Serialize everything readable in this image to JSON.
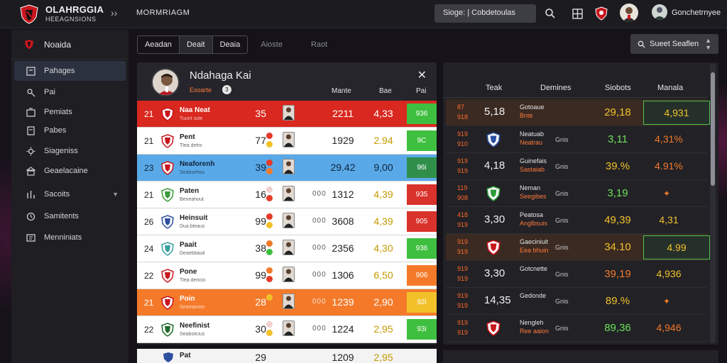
{
  "app": {
    "title": "OLAHRGGIA",
    "subtitle": "HEEAGNSIONS"
  },
  "topbar": {
    "nav_label": "MORMRIAGM",
    "search_value": "Sioge: | Cobdetoulas",
    "user_label": "Gonchetrnyee"
  },
  "sidebar": {
    "header": "Noaida",
    "items": [
      {
        "label": "Pahages",
        "icon": "box-icon",
        "active": true
      },
      {
        "label": "Pai",
        "icon": "key-icon",
        "active": false
      },
      {
        "label": "Pemiats",
        "icon": "folder-icon",
        "active": false
      },
      {
        "label": "Pabes",
        "icon": "calendar-icon",
        "active": false
      },
      {
        "label": "Siageniss",
        "icon": "gear-icon",
        "active": false
      },
      {
        "label": "Geaelacaine",
        "icon": "bank-icon",
        "active": false
      },
      {
        "label": "Sacoits",
        "icon": "chart-icon",
        "active": false,
        "has_chevron": true
      },
      {
        "label": "Samitents",
        "icon": "clock-icon",
        "active": false
      },
      {
        "label": "Menniniats",
        "icon": "book-icon",
        "active": false
      }
    ]
  },
  "tabs": {
    "group": [
      "Aeadan",
      "Deait",
      "Deaia"
    ],
    "extra": [
      "Aioste",
      "Raot"
    ],
    "sort_label": "Sueet Seaflen"
  },
  "left_panel": {
    "player_name": "Ndahaga Kai",
    "player_sub": "Esoarte",
    "badge": "3",
    "columns": [
      "Mante",
      "Bae",
      "Pai"
    ],
    "rows": [
      {
        "rank": "21",
        "team": "Naa Neat",
        "sub": "Tuunt sole",
        "pts": "35",
        "gd": "",
        "score": "2211",
        "val": "4,33",
        "badge": "936",
        "style": "red",
        "badge_color": "#3fbf3f",
        "dots": []
      },
      {
        "rank": "21",
        "team": "Pent",
        "sub": "Tlea detro",
        "pts": "77",
        "gd": "",
        "score": "1929",
        "val": "2.94",
        "badge": "9C",
        "style": "white",
        "badge_color": "#3fbf3f",
        "dots": [
          "#e63a2a",
          "#f2c12a"
        ]
      },
      {
        "rank": "23",
        "team": "Neaforenh",
        "sub": "Seabsehou",
        "pts": "39",
        "gd": "",
        "score": "29.42",
        "val": "9,00",
        "badge": "96i",
        "style": "blue",
        "badge_color": "#2f8f4a",
        "dots": [
          "#e63a2a",
          "#f27a2a"
        ]
      },
      {
        "rank": "21",
        "team": "Paten",
        "sub": "Beneahout",
        "pts": "16",
        "gd": "000",
        "score": "1312",
        "val": "4,39",
        "badge": "935",
        "style": "white",
        "badge_color": "#d9322a",
        "dots": [
          "#f0d0d0",
          "#e63a2a"
        ]
      },
      {
        "rank": "26",
        "team": "Heinsuit",
        "sub": "Dua bleaus",
        "pts": "99",
        "gd": "000",
        "score": "3608",
        "val": "4,39",
        "badge": "905",
        "style": "white",
        "badge_color": "#d9322a",
        "dots": [
          "#e63a2a",
          "#f2c12a"
        ]
      },
      {
        "rank": "24",
        "team": "Paait",
        "sub": "Deaebliaud",
        "pts": "38",
        "gd": "000",
        "score": "2356",
        "val": "4,30",
        "badge": "936",
        "style": "white",
        "badge_color": "#3fbf3f",
        "dots": [
          "#f27a2a",
          "#3fbf3f"
        ]
      },
      {
        "rank": "22",
        "team": "Pone",
        "sub": "Tlea dencio",
        "pts": "99",
        "gd": "000",
        "score": "1306",
        "val": "6,50",
        "badge": "906",
        "style": "white",
        "badge_color": "#f47a2a",
        "dots": [
          "#f27a2a",
          "#e63a2a"
        ]
      },
      {
        "rank": "21",
        "team": "Poin",
        "sub": "Seaetanein",
        "pts": "28",
        "gd": "000",
        "score": "1239",
        "val": "2,90",
        "badge": "92i",
        "style": "orange",
        "badge_color": "#f2c12a",
        "dots": [
          "#f2c12a"
        ]
      },
      {
        "rank": "22",
        "team": "Neefinist",
        "sub": "Seabsilcius",
        "pts": "30",
        "gd": "000",
        "score": "1224",
        "val": "2,95",
        "badge": "93i",
        "style": "white",
        "badge_color": "#3fbf3f",
        "dots": [
          "#f0d0d0",
          "#f2c12a"
        ]
      }
    ],
    "partial_row": {
      "rank": "",
      "team": "Pat",
      "pts": "29",
      "score": "1209",
      "val": "2,95"
    }
  },
  "right_panel": {
    "columns": [
      "Teak",
      "Demines",
      "Siobots",
      "Manala"
    ],
    "rows": [
      {
        "r1": "87",
        "r2": "918",
        "big": "5,18",
        "team": "Gotoaue",
        "sub": "Bnte",
        "em": "",
        "v1": "29,18",
        "v1c": "#f2c12a",
        "v2": "4,931",
        "v2c": "#f2c12a",
        "hl": true,
        "boxed": true
      },
      {
        "r1": "919",
        "r2": "910",
        "big": "",
        "team": "Neatuab",
        "sub": "Neatrau",
        "em": "Gnis",
        "v1": "3,11",
        "v1c": "#6fe05a",
        "v2": "4,31%",
        "v2c": "#f27a2a",
        "hl": false,
        "boxed": false
      },
      {
        "r1": "919",
        "r2": "919",
        "big": "4,18",
        "team": "Guinefais",
        "sub": "Sastaiab",
        "em": "Gnis",
        "v1": "39.%",
        "v1c": "#f2c12a",
        "v2": "4.91%",
        "v2c": "#f27a2a",
        "hl": false,
        "boxed": false
      },
      {
        "r1": "119",
        "r2": "908",
        "big": "",
        "team": "Neman",
        "sub": "Seegibes",
        "em": "Gnis",
        "v1": "3,19",
        "v1c": "#6fe05a",
        "v2": "",
        "v2c": "#f27a2a",
        "hl": false,
        "boxed": false
      },
      {
        "r1": "418",
        "r2": "919",
        "big": "3,30",
        "team": "Peatosa",
        "sub": "Anglbsuis",
        "em": "Gnis",
        "v1": "49,39",
        "v1c": "#f2c12a",
        "v2": "4,31",
        "v2c": "#f2c12a",
        "hl": false,
        "boxed": false
      },
      {
        "r1": "919",
        "r2": "919",
        "big": "",
        "team": "Gaeciniuit",
        "sub": "Eea bhuin",
        "em": "Gnis",
        "v1": "34.10",
        "v1c": "#f2c12a",
        "v2": "4.99",
        "v2c": "#f2c12a",
        "hl": true,
        "boxed": true
      },
      {
        "r1": "919",
        "r2": "919",
        "big": "3,30",
        "team": "Gotcnette",
        "sub": "",
        "em": "Gnis",
        "v1": "39,19",
        "v1c": "#f27a2a",
        "v2": "4,936",
        "v2c": "#f2c12a",
        "hl": false,
        "boxed": false
      },
      {
        "r1": "919",
        "r2": "919",
        "big": "14,35",
        "team": "Gedonde",
        "sub": "",
        "em": "Gnis",
        "v1": "89.%",
        "v1c": "#f2c12a",
        "v2": "",
        "v2c": "#f27a2a",
        "hl": false,
        "boxed": false
      },
      {
        "r1": "919",
        "r2": "919",
        "big": "",
        "team": "Nengleh",
        "sub": "Ree aaion",
        "em": "Gnis",
        "v1": "89,36",
        "v1c": "#6fe05a",
        "v2": "4,946",
        "v2c": "#f27a2a",
        "hl": false,
        "boxed": false
      }
    ]
  },
  "colors": {
    "accent": "#ff6a2a",
    "win": "#3fbf3f",
    "loss": "#d9322a"
  }
}
